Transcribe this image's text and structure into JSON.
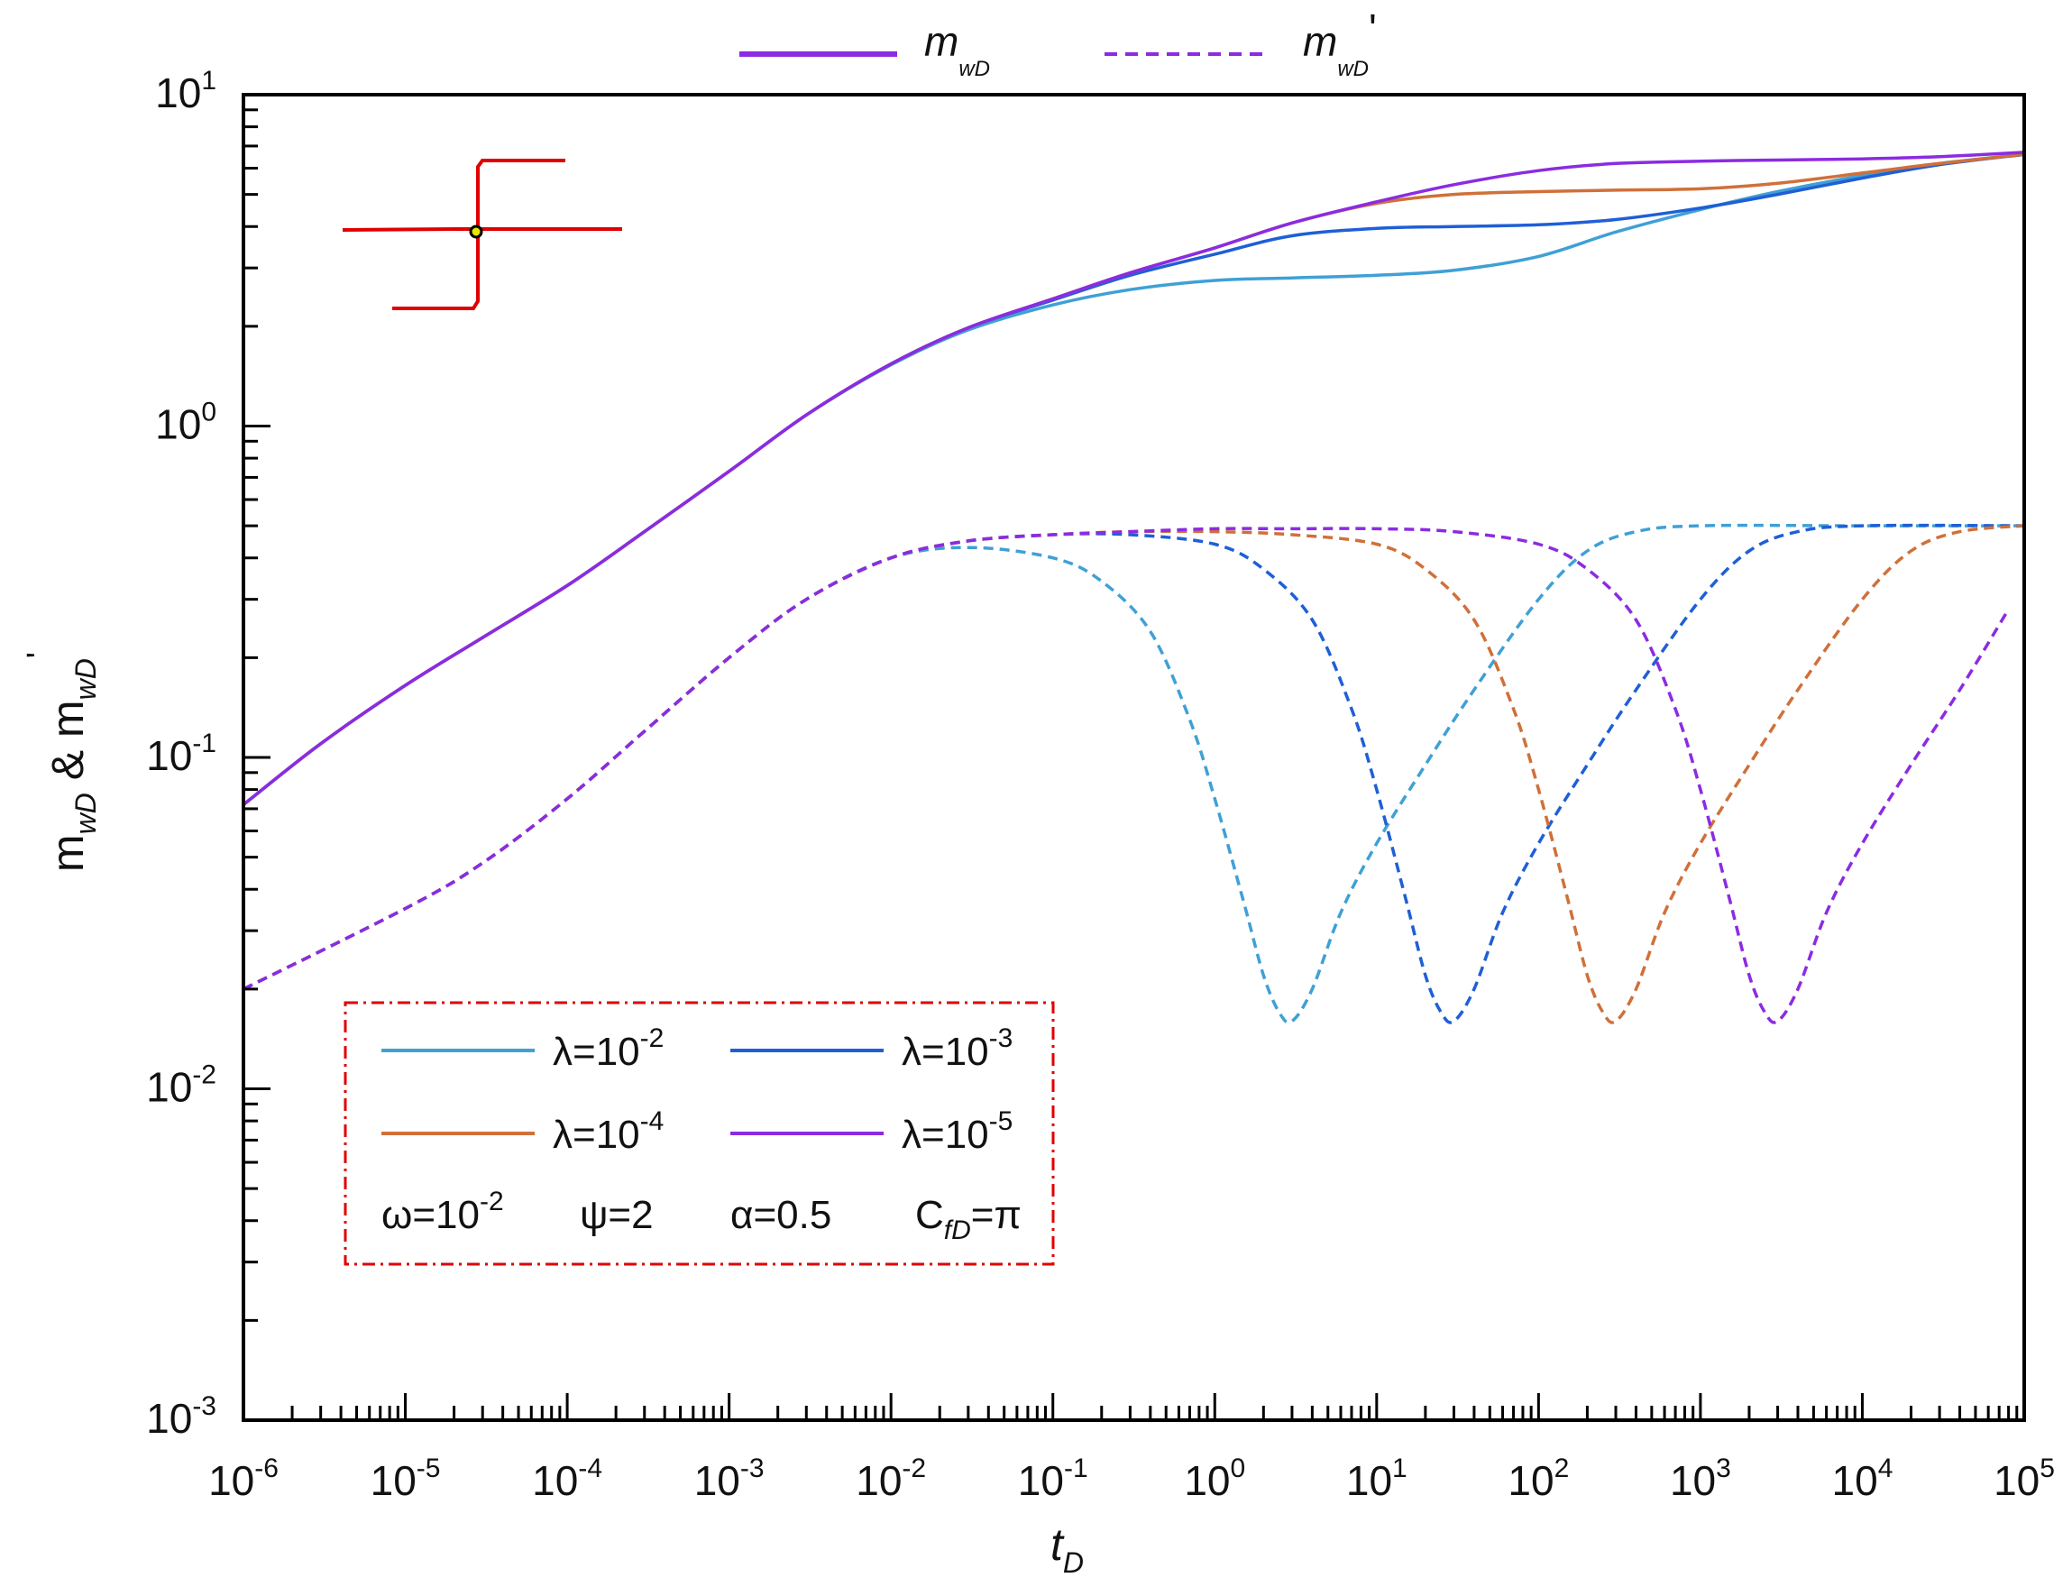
{
  "chart_data": {
    "type": "line",
    "title": "",
    "xlabel": {
      "main": "t",
      "sub": "D"
    },
    "ylabel": {
      "parts": [
        {
          "t": "m"
        },
        {
          "sub": "wD"
        },
        {
          "t": " & m"
        },
        {
          "sub": "wD"
        },
        {
          "sup": "'"
        }
      ]
    },
    "xscale": "log",
    "yscale": "log",
    "xlim": [
      1e-06,
      100000.0
    ],
    "ylim": [
      0.001,
      10
    ],
    "x_tick_labels": [
      {
        "base": "10",
        "exp": "-6"
      },
      {
        "base": "10",
        "exp": "-5"
      },
      {
        "base": "10",
        "exp": "-4"
      },
      {
        "base": "10",
        "exp": "-3"
      },
      {
        "base": "10",
        "exp": "-2"
      },
      {
        "base": "10",
        "exp": "-1"
      },
      {
        "base": "10",
        "exp": "0"
      },
      {
        "base": "10",
        "exp": "1"
      },
      {
        "base": "10",
        "exp": "2"
      },
      {
        "base": "10",
        "exp": "3"
      },
      {
        "base": "10",
        "exp": "4"
      },
      {
        "base": "10",
        "exp": "5"
      }
    ],
    "y_tick_labels": [
      {
        "base": "10",
        "exp": "-3"
      },
      {
        "base": "10",
        "exp": "-2"
      },
      {
        "base": "10",
        "exp": "-1"
      },
      {
        "base": "10",
        "exp": "0"
      },
      {
        "base": "10",
        "exp": "1"
      }
    ],
    "top_legend": [
      {
        "style": "solid",
        "color": "#8b2be2",
        "label": {
          "main": "m",
          "sub": "wD",
          "sup": ""
        }
      },
      {
        "style": "dashed",
        "color": "#8b2be2",
        "label": {
          "main": "m",
          "sub": "wD",
          "sup": "'"
        }
      }
    ],
    "legend_box": {
      "entries": [
        {
          "color": "#3fa0d6",
          "label": {
            "t": "λ=10",
            "sup": "-2"
          }
        },
        {
          "color": "#1f5fd6",
          "label": {
            "t": "λ=10",
            "sup": "-3"
          }
        },
        {
          "color": "#d0703a",
          "label": {
            "t": "λ=10",
            "sup": "-4"
          }
        },
        {
          "color": "#8b2be2",
          "label": {
            "t": "λ=10",
            "sup": "-5"
          }
        }
      ],
      "params": [
        {
          "t": "ω=10",
          "sup": "-2"
        },
        {
          "t": "ψ=2"
        },
        {
          "t": "α=0.5"
        },
        {
          "t": "C",
          "sub": "fD",
          "t2": "=π"
        }
      ]
    },
    "series": [
      {
        "name": "mwD λ=10^-2",
        "style": "solid",
        "color": "#3fa0d6",
        "x": [
          1e-06,
          3e-06,
          1e-05,
          3e-05,
          0.0001,
          0.0003,
          0.001,
          0.003,
          0.01,
          0.03,
          0.1,
          0.3,
          1,
          3,
          10,
          30,
          100,
          300,
          1000,
          3000,
          10000,
          30000,
          100000
        ],
        "y": [
          0.072,
          0.11,
          0.165,
          0.23,
          0.33,
          0.48,
          0.73,
          1.08,
          1.53,
          1.95,
          2.32,
          2.58,
          2.75,
          2.8,
          2.85,
          2.95,
          3.25,
          3.85,
          4.5,
          5.1,
          5.7,
          6.2,
          6.6
        ]
      },
      {
        "name": "mwD λ=10^-3",
        "style": "solid",
        "color": "#1f5fd6",
        "x": [
          1e-06,
          3e-06,
          1e-05,
          3e-05,
          0.0001,
          0.0003,
          0.001,
          0.003,
          0.01,
          0.03,
          0.1,
          0.3,
          1,
          3,
          10,
          30,
          100,
          300,
          1000,
          3000,
          10000,
          30000,
          100000
        ],
        "y": [
          0.072,
          0.11,
          0.165,
          0.23,
          0.33,
          0.48,
          0.73,
          1.08,
          1.54,
          1.98,
          2.4,
          2.85,
          3.3,
          3.75,
          3.95,
          4.0,
          4.05,
          4.2,
          4.55,
          5.0,
          5.6,
          6.15,
          6.6
        ]
      },
      {
        "name": "mwD λ=10^-4",
        "style": "solid",
        "color": "#d0703a",
        "x": [
          1e-06,
          3e-06,
          1e-05,
          3e-05,
          0.0001,
          0.0003,
          0.001,
          0.003,
          0.01,
          0.03,
          0.1,
          0.3,
          1,
          3,
          10,
          30,
          100,
          300,
          1000,
          3000,
          10000,
          30000,
          100000
        ],
        "y": [
          0.072,
          0.11,
          0.165,
          0.23,
          0.33,
          0.48,
          0.73,
          1.08,
          1.54,
          1.98,
          2.42,
          2.9,
          3.45,
          4.1,
          4.7,
          5.0,
          5.1,
          5.15,
          5.2,
          5.4,
          5.8,
          6.2,
          6.6
        ]
      },
      {
        "name": "mwD λ=10^-5",
        "style": "solid",
        "color": "#8b2be2",
        "x": [
          1e-06,
          3e-06,
          1e-05,
          3e-05,
          0.0001,
          0.0003,
          0.001,
          0.003,
          0.01,
          0.03,
          0.1,
          0.3,
          1,
          3,
          10,
          30,
          100,
          300,
          1000,
          3000,
          10000,
          30000,
          100000
        ],
        "y": [
          0.072,
          0.11,
          0.165,
          0.23,
          0.33,
          0.48,
          0.73,
          1.08,
          1.54,
          1.98,
          2.42,
          2.9,
          3.45,
          4.1,
          4.75,
          5.35,
          5.9,
          6.2,
          6.3,
          6.35,
          6.4,
          6.5,
          6.7
        ]
      },
      {
        "name": "mwD' λ=10^-2",
        "style": "dashed",
        "color": "#3fa0d6",
        "x": [
          1e-06,
          1e-05,
          3e-05,
          0.0001,
          0.0003,
          0.001,
          0.003,
          0.01,
          0.03,
          0.1,
          0.2,
          0.4,
          0.7,
          1,
          1.5,
          2,
          2.5,
          3,
          4,
          6,
          10,
          20,
          40,
          100,
          200,
          400,
          1000,
          10000,
          100000
        ],
        "y": [
          0.02,
          0.035,
          0.048,
          0.075,
          0.12,
          0.2,
          0.3,
          0.4,
          0.43,
          0.4,
          0.34,
          0.24,
          0.13,
          0.075,
          0.037,
          0.022,
          0.017,
          0.016,
          0.02,
          0.034,
          0.055,
          0.095,
          0.16,
          0.3,
          0.42,
          0.48,
          0.5,
          0.5,
          0.5
        ]
      },
      {
        "name": "mwD' λ=10^-3",
        "style": "dashed",
        "color": "#1f5fd6",
        "x": [
          1e-06,
          1e-05,
          3e-05,
          0.0001,
          0.0003,
          0.001,
          0.003,
          0.01,
          0.03,
          0.1,
          0.3,
          1,
          2,
          4,
          7,
          10,
          15,
          20,
          25,
          30,
          40,
          60,
          100,
          200,
          400,
          1000,
          2000,
          4000,
          10000,
          100000
        ],
        "y": [
          0.02,
          0.035,
          0.048,
          0.075,
          0.12,
          0.2,
          0.3,
          0.4,
          0.45,
          0.47,
          0.47,
          0.44,
          0.37,
          0.26,
          0.14,
          0.08,
          0.038,
          0.022,
          0.017,
          0.016,
          0.02,
          0.034,
          0.055,
          0.095,
          0.16,
          0.3,
          0.42,
          0.48,
          0.5,
          0.5
        ]
      },
      {
        "name": "mwD' λ=10^-4",
        "style": "dashed",
        "color": "#d0703a",
        "x": [
          1e-06,
          1e-05,
          3e-05,
          0.0001,
          0.0003,
          0.001,
          0.003,
          0.01,
          0.03,
          0.1,
          0.3,
          1,
          3,
          10,
          20,
          40,
          70,
          100,
          150,
          200,
          250,
          300,
          400,
          600,
          1000,
          2000,
          4000,
          10000,
          20000,
          40000,
          100000
        ],
        "y": [
          0.02,
          0.035,
          0.048,
          0.075,
          0.12,
          0.2,
          0.3,
          0.4,
          0.45,
          0.47,
          0.48,
          0.48,
          0.47,
          0.44,
          0.37,
          0.26,
          0.14,
          0.08,
          0.038,
          0.022,
          0.017,
          0.016,
          0.02,
          0.034,
          0.055,
          0.095,
          0.16,
          0.3,
          0.42,
          0.48,
          0.5
        ]
      },
      {
        "name": "mwD' λ=10^-5",
        "style": "dashed",
        "color": "#8b2be2",
        "x": [
          1e-06,
          1e-05,
          3e-05,
          0.0001,
          0.0003,
          0.001,
          0.003,
          0.01,
          0.03,
          0.1,
          0.3,
          1,
          3,
          10,
          30,
          100,
          200,
          400,
          700,
          1000,
          1500,
          2000,
          2500,
          3000,
          4000,
          6000,
          10000,
          20000,
          40000,
          80000
        ],
        "y": [
          0.02,
          0.035,
          0.048,
          0.075,
          0.12,
          0.2,
          0.3,
          0.4,
          0.45,
          0.47,
          0.48,
          0.49,
          0.49,
          0.49,
          0.48,
          0.44,
          0.37,
          0.26,
          0.14,
          0.08,
          0.038,
          0.022,
          0.017,
          0.016,
          0.02,
          0.034,
          0.055,
          0.095,
          0.16,
          0.28
        ]
      }
    ]
  }
}
